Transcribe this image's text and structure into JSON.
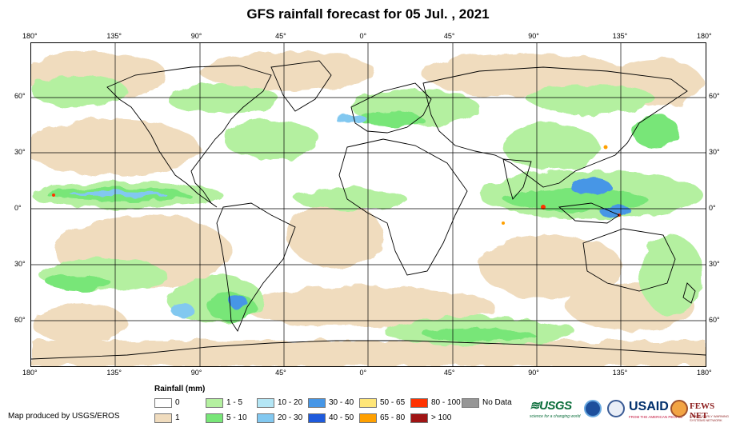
{
  "title": "GFS rainfall forecast for 05 Jul. , 2021",
  "x_ticks": [
    "180°",
    "135°",
    "90°",
    "45°",
    "0°",
    "45°",
    "90°",
    "135°",
    "180°"
  ],
  "y_ticks": [
    "60°",
    "30°",
    "0°",
    "30°",
    "60°"
  ],
  "legend": {
    "title": "Rainfall (mm)",
    "items": [
      {
        "label": "0",
        "color": "#ffffff"
      },
      {
        "label": "1",
        "color": "#f0dcbe"
      },
      {
        "label": "1 - 5",
        "color": "#b4f0a0"
      },
      {
        "label": "5 - 10",
        "color": "#78e678"
      },
      {
        "label": "10 - 20",
        "color": "#b4e6f5"
      },
      {
        "label": "20 - 30",
        "color": "#82c8f0"
      },
      {
        "label": "30 - 40",
        "color": "#4696e6"
      },
      {
        "label": "40 - 50",
        "color": "#1e5adc"
      },
      {
        "label": "50 - 65",
        "color": "#ffe678"
      },
      {
        "label": "65 - 80",
        "color": "#ffa000"
      },
      {
        "label": "80 - 100",
        "color": "#ff3200"
      },
      {
        "label": "> 100",
        "color": "#a01414"
      },
      {
        "label": "No Data",
        "color": "#969696"
      }
    ]
  },
  "credit": "Map produced by USGS/EROS",
  "logos": {
    "usgs": "≋USGS",
    "usgs_tagline": "science for a changing world",
    "usaid": "USAID",
    "usaid_tagline": "FROM THE AMERICAN PEOPLE",
    "fews": "FEWS NET",
    "fews_tagline": "FAMINE EARLY WARNING SYSTEMS NETWORK"
  }
}
